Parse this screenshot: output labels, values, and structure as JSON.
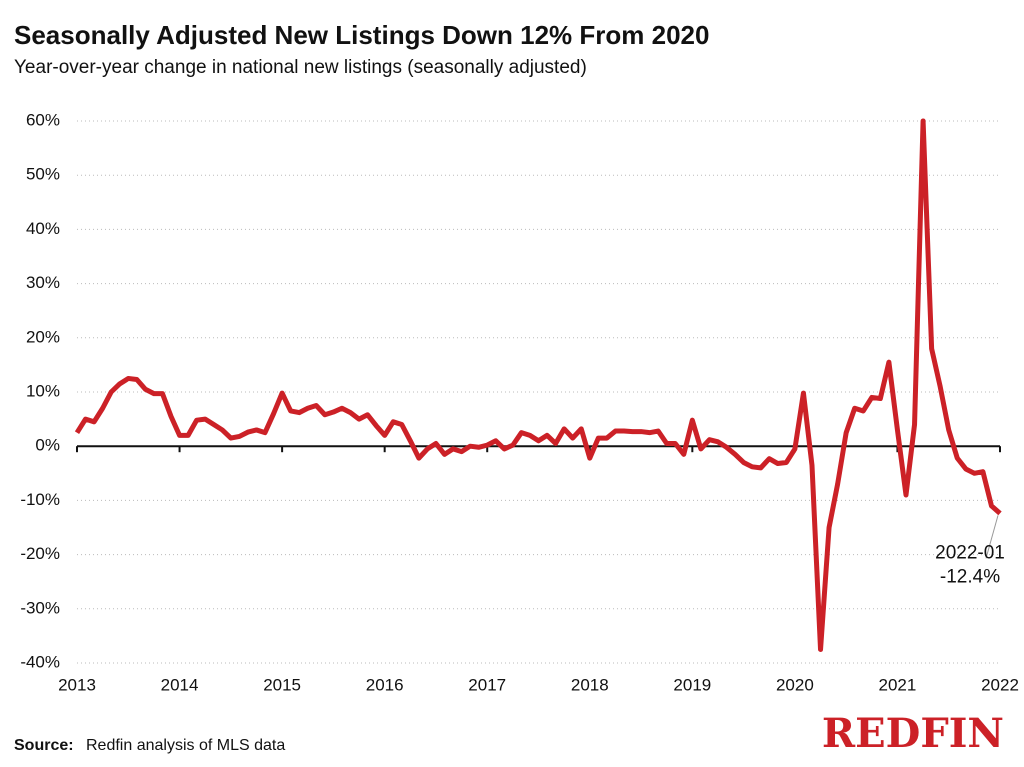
{
  "chart_data": {
    "type": "line",
    "title": "Seasonally Adjusted New Listings Down 12% From 2020",
    "subtitle": "Year-over-year change in national new listings (seasonally adjusted)",
    "source_label": "Source:",
    "source_text": "Redfin analysis of MLS data",
    "brand": "REDFIN",
    "xlim": [
      2013,
      2022
    ],
    "xticks": [
      2013,
      2014,
      2015,
      2016,
      2017,
      2018,
      2019,
      2020,
      2021,
      2022
    ],
    "ylim": [
      -40,
      60
    ],
    "yticks": [
      {
        "value": -40,
        "label": "-40%"
      },
      {
        "value": -30,
        "label": "-30%"
      },
      {
        "value": -20,
        "label": "-20%"
      },
      {
        "value": -10,
        "label": "-10%"
      },
      {
        "value": 0,
        "label": "0%"
      },
      {
        "value": 10,
        "label": "10%"
      },
      {
        "value": 20,
        "label": "20%"
      },
      {
        "value": 30,
        "label": "30%"
      },
      {
        "value": 40,
        "label": "40%"
      },
      {
        "value": 50,
        "label": "50%"
      },
      {
        "value": 60,
        "label": "60%"
      }
    ],
    "grid": true,
    "annotation": {
      "x_label": "2022-01",
      "value_label": "-12.4%"
    },
    "series": [
      {
        "color": "#cc2127",
        "x": [
          2013,
          2013.0833,
          2013.1667,
          2013.25,
          2013.3333,
          2013.4167,
          2013.5,
          2013.5833,
          2013.6667,
          2013.75,
          2013.8333,
          2013.9167,
          2014,
          2014.0833,
          2014.1667,
          2014.25,
          2014.3333,
          2014.4167,
          2014.5,
          2014.5833,
          2014.6667,
          2014.75,
          2014.8333,
          2014.9167,
          2015,
          2015.0833,
          2015.1667,
          2015.25,
          2015.3333,
          2015.4167,
          2015.5,
          2015.5833,
          2015.6667,
          2015.75,
          2015.8333,
          2015.9167,
          2016,
          2016.0833,
          2016.1667,
          2016.25,
          2016.3333,
          2016.4167,
          2016.5,
          2016.5833,
          2016.6667,
          2016.75,
          2016.8333,
          2016.9167,
          2017,
          2017.0833,
          2017.1667,
          2017.25,
          2017.3333,
          2017.4167,
          2017.5,
          2017.5833,
          2017.6667,
          2017.75,
          2017.8333,
          2017.9167,
          2018,
          2018.0833,
          2018.1667,
          2018.25,
          2018.3333,
          2018.4167,
          2018.5,
          2018.5833,
          2018.6667,
          2018.75,
          2018.8333,
          2018.9167,
          2019,
          2019.0833,
          2019.1667,
          2019.25,
          2019.3333,
          2019.4167,
          2019.5,
          2019.5833,
          2019.6667,
          2019.75,
          2019.8333,
          2019.9167,
          2020,
          2020.0833,
          2020.1667,
          2020.25,
          2020.3333,
          2020.4167,
          2020.5,
          2020.5833,
          2020.6667,
          2020.75,
          2020.8333,
          2020.9167,
          2021,
          2021.0833,
          2021.1667,
          2021.25,
          2021.3333,
          2021.4167,
          2021.5,
          2021.5833,
          2021.6667,
          2021.75,
          2021.8333,
          2021.9167,
          2022
        ],
        "values": [
          2.5,
          5,
          4.5,
          7,
          10,
          11.5,
          12.5,
          12.3,
          10.5,
          9.7,
          9.7,
          5.5,
          2,
          2,
          4.8,
          5,
          4,
          3,
          1.5,
          1.8,
          2.6,
          3,
          2.5,
          6,
          9.8,
          6.5,
          6.2,
          7,
          7.5,
          5.8,
          6.3,
          7,
          6.2,
          5,
          5.8,
          3.8,
          2,
          4.5,
          4,
          1,
          -2.2,
          -0.5,
          0.5,
          -1.5,
          -0.5,
          -1,
          0,
          -0.2,
          0.2,
          1,
          -0.5,
          0.2,
          2.5,
          2,
          1,
          2,
          0.5,
          3.2,
          1.5,
          3.2,
          -2.2,
          1.5,
          1.5,
          2.8,
          2.8,
          2.7,
          2.7,
          2.5,
          2.8,
          0.5,
          0.5,
          -1.5,
          4.8,
          -0.5,
          1.2,
          0.8,
          -0.2,
          -1.5,
          -3,
          -3.8,
          -4,
          -2.3,
          -3.2,
          -3,
          -0.5,
          9.8,
          -3.5,
          -37.5,
          -15,
          -7,
          2.5,
          7,
          6.5,
          9,
          8.8,
          15.5,
          3,
          -9,
          4,
          60,
          18,
          11,
          3,
          -2.2,
          -4.2,
          -5,
          -4.7,
          -11,
          -12.4
        ]
      }
    ]
  }
}
